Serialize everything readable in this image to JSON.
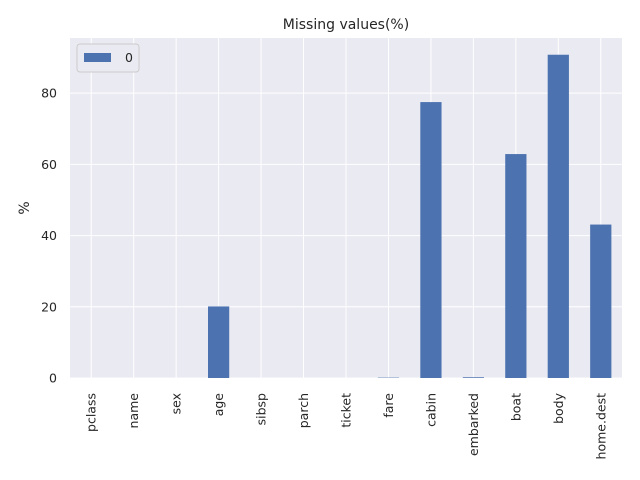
{
  "chart_data": {
    "type": "bar",
    "title": "Missing values(%)",
    "xlabel": "",
    "ylabel": "%",
    "ylim": [
      0,
      95.5
    ],
    "yticks": [
      0,
      20,
      40,
      60,
      80
    ],
    "grid": true,
    "legend_position": "upper-left",
    "categories": [
      "pclass",
      "name",
      "sex",
      "age",
      "sibsp",
      "parch",
      "ticket",
      "fare",
      "cabin",
      "embarked",
      "boat",
      "body",
      "home.dest"
    ],
    "series": [
      {
        "name": "0",
        "values": [
          0,
          0,
          0,
          20.1,
          0,
          0,
          0,
          0.1,
          77.5,
          0.2,
          62.9,
          90.8,
          43.1
        ]
      }
    ],
    "colors": {
      "bar": "#4c72b0",
      "background": "#eaeaf2",
      "grid": "#ffffff"
    }
  }
}
